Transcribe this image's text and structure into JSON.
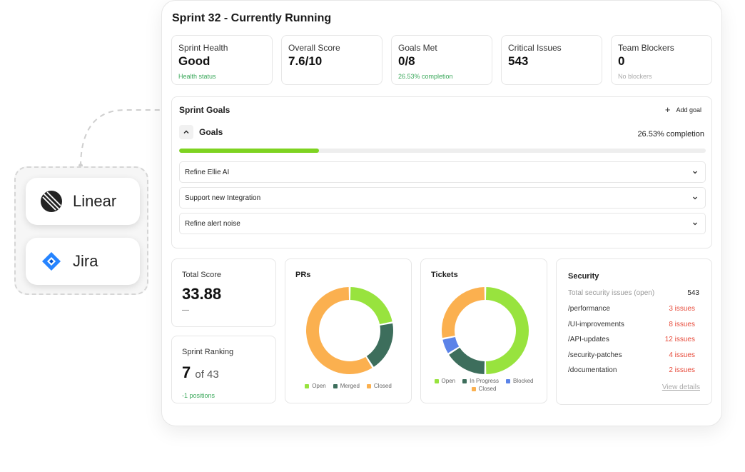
{
  "integrations": {
    "items": [
      {
        "label": "Linear",
        "icon": "linear-logo-icon"
      },
      {
        "label": "Jira",
        "icon": "jira-logo-icon"
      }
    ]
  },
  "dashboard": {
    "title": "Sprint 32  - Currently Running",
    "metrics": [
      {
        "label": "Sprint Health",
        "value": "Good",
        "sub": "Health status",
        "sub_tone": "green"
      },
      {
        "label": "Overall Score",
        "value": "7.6/10",
        "sub": "",
        "sub_tone": "gray"
      },
      {
        "label": "Goals Met",
        "value": "0/8",
        "sub": "26.53% completion",
        "sub_tone": "green"
      },
      {
        "label": "Critical Issues",
        "value": "543",
        "sub": "",
        "sub_tone": "gray"
      },
      {
        "label": "Team Blockers",
        "value": "0",
        "sub": "No blockers",
        "sub_tone": "gray"
      }
    ],
    "goals": {
      "title": "Sprint Goals",
      "add_label": "Add goal",
      "section_label": "Goals",
      "completion_text": "26.53% completion",
      "completion_percent": 26.53,
      "items": [
        "Refine Ellie AI",
        "Support new Integration",
        "Refine alert noise"
      ]
    },
    "total_score": {
      "label": "Total Score",
      "value": "33.88",
      "sub": "—"
    },
    "ranking": {
      "label": "Sprint Ranking",
      "rank": "7",
      "of_text": "of 43",
      "sub": "-1 positions"
    },
    "prs": {
      "label": "PRs",
      "segments": [
        {
          "name": "Open",
          "value": 22,
          "color": "#98e33e"
        },
        {
          "name": "Merged",
          "value": 19,
          "color": "#3d6e5c"
        },
        {
          "name": "Closed",
          "value": 59,
          "color": "#fbb04f"
        }
      ]
    },
    "tickets": {
      "label": "Tickets",
      "segments": [
        {
          "name": "Open",
          "value": 50,
          "color": "#98e33e"
        },
        {
          "name": "In Progress",
          "value": 16,
          "color": "#3d6e5c"
        },
        {
          "name": "Blocked",
          "value": 6,
          "color": "#5b83e8"
        },
        {
          "name": "Closed",
          "value": 28,
          "color": "#fbb04f"
        }
      ]
    },
    "security": {
      "title": "Security",
      "total_label": "Total security issues (open)",
      "total_value": "543",
      "rows": [
        {
          "path": "/performance",
          "issues": "3 issues"
        },
        {
          "path": "/UI-improvements",
          "issues": "8 issues"
        },
        {
          "path": "/API-updates",
          "issues": "12 issues"
        },
        {
          "path": "/security-patches",
          "issues": "4 issues"
        },
        {
          "path": "/documentation",
          "issues": "2 issues"
        }
      ],
      "view_details": "View details"
    }
  }
}
